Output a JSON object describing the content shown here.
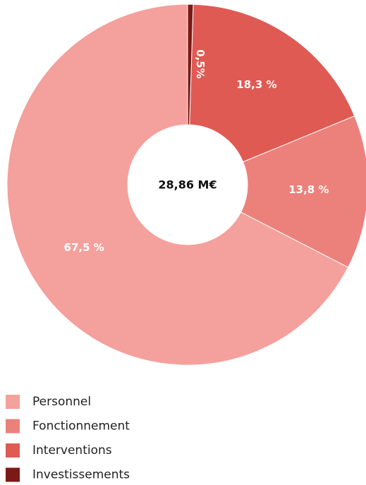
{
  "chart_data": {
    "type": "donut",
    "center_label": "28,86 M€",
    "categories": [
      "Personnel",
      "Fonctionnement",
      "Interventions",
      "Investissements"
    ],
    "values": [
      67.5,
      13.8,
      18.3,
      0.5
    ],
    "value_labels": [
      "67,5 %",
      "13,8 %",
      "18,3 %",
      "0,5%"
    ],
    "colors": [
      "#f4a09c",
      "#ec817c",
      "#e05a54",
      "#7a1a16"
    ],
    "legend": "bottom-left"
  }
}
